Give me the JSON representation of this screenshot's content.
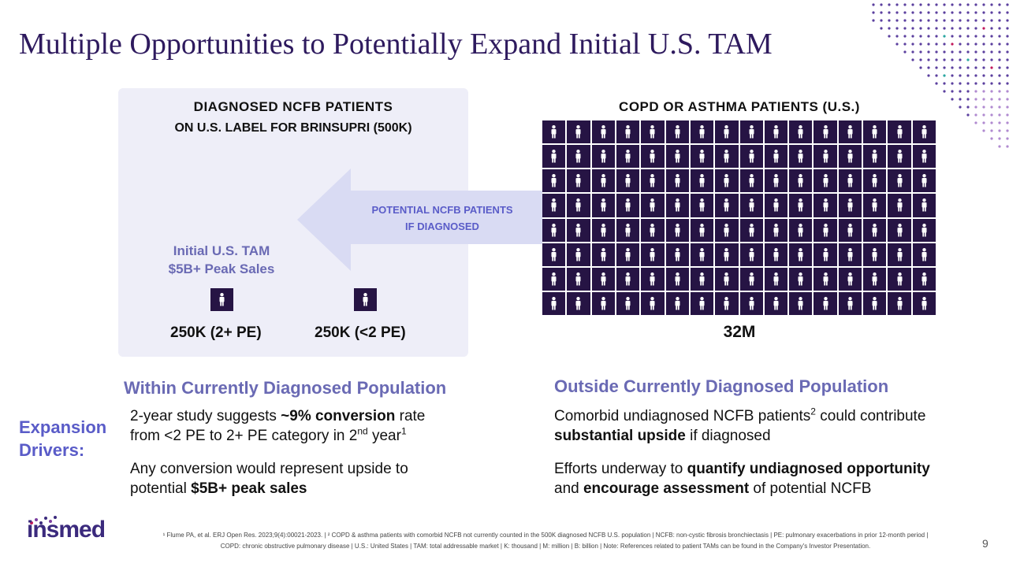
{
  "slide": {
    "title": "Multiple Opportunities to Potentially Expand Initial U.S. TAM",
    "page_number": "9"
  },
  "left_panel": {
    "heading_line1": "DIAGNOSED  NCFB  PATIENTS",
    "heading_line2": "ON U.S. LABEL FOR BRINSUPRI (500K)",
    "arrow_label_line1": "POTENTIAL NCFB PATIENTS",
    "arrow_label_line2": "IF DIAGNOSED",
    "tam_line1": "Initial U.S. TAM",
    "tam_line2": "$5B+ Peak Sales",
    "count_2plus": "250K (2+ PE)",
    "count_lt2": "250K (<2 PE)"
  },
  "right_panel": {
    "heading": "COPD  OR  ASTHMA  PATIENTS  (U.S.)",
    "count": "32M"
  },
  "within": {
    "heading": "Within Currently Diagnosed Population",
    "p1_part1": "2-year study suggests ",
    "p1_bold": "~9% conversion",
    "p1_part2": " rate",
    "p1_line2": "from <2 PE to 2+ PE category in 2",
    "p1_sup_nd": "nd",
    "p1_year": " year",
    "p1_sup_ref": "1",
    "p2_part1": "Any conversion would represent upside to",
    "p2_part2": "potential ",
    "p2_bold": "$5B+ peak sales"
  },
  "outside": {
    "heading": "Outside Currently Diagnosed Population",
    "p1_part1": "Comorbid undiagnosed NCFB patients",
    "p1_sup": "2",
    "p1_part2": " could contribute",
    "p1_bold": "substantial upside",
    "p1_part3": " if diagnosed",
    "p2_part1": "Efforts underway to ",
    "p2_bold1": "quantify undiagnosed opportunity",
    "p2_part2": "and ",
    "p2_bold2": "encourage assessment",
    "p2_part3": " of potential NCFB"
  },
  "drivers": {
    "line1": "Expansion",
    "line2": "Drivers:"
  },
  "footer": {
    "logo": "insmed",
    "footnote_line1": "¹ Flume PA, et al. ERJ Open Res. 2023;9(4):00021-2023. | ² COPD & asthma patients with comorbid NCFB not currently counted in the 500K diagnosed NCFB U.S. population | NCFB: non-cystic fibrosis bronchiectasis | PE: pulmonary exacerbations in prior 12-month period |",
    "footnote_line2": "COPD: chronic obstructive pulmonary disease | U.S.: United States | TAM: total addressable market | K: thousand | M: million  | B: billion | Note: References related to patient TAMs can be found in the Company's Investor Presentation."
  },
  "colors": {
    "title": "#2e1a5e",
    "accent": "#6a6ab4",
    "person_box": "#261444",
    "panel_bg": "#eeeef8"
  }
}
